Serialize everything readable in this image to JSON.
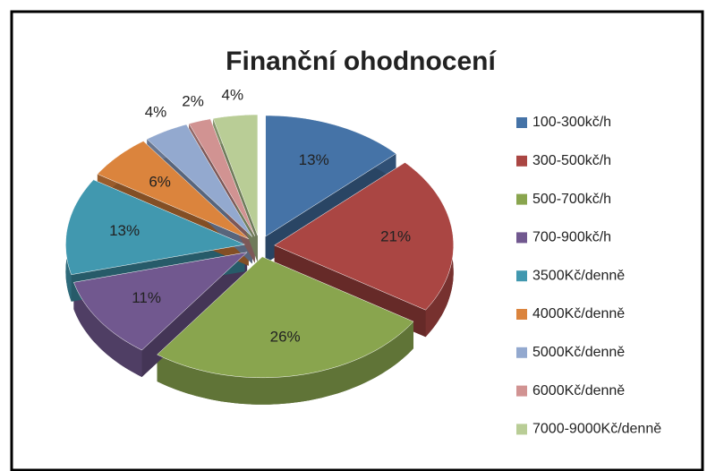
{
  "chart_data": {
    "type": "pie3d",
    "title": "Finanční ohodnocení",
    "categories": [
      "100-300kč/h",
      "300-500kč/h",
      "500-700kč/h",
      "700-900kč/h",
      "3500Kč/denně",
      "4000Kč/denně",
      "5000Kč/denně",
      "6000Kč/denně",
      "7000-9000Kč/denně"
    ],
    "values": [
      13,
      21,
      26,
      11,
      13,
      6,
      4,
      2,
      4
    ],
    "value_labels": [
      "13%",
      "21%",
      "26%",
      "11%",
      "13%",
      "6%",
      "4%",
      "2%",
      "4%"
    ],
    "colors": [
      "#4573a7",
      "#aa4643",
      "#89a54e",
      "#71588f",
      "#4198af",
      "#db843d",
      "#93a9cf",
      "#d19392",
      "#b9cd96"
    ],
    "legend": "right"
  }
}
